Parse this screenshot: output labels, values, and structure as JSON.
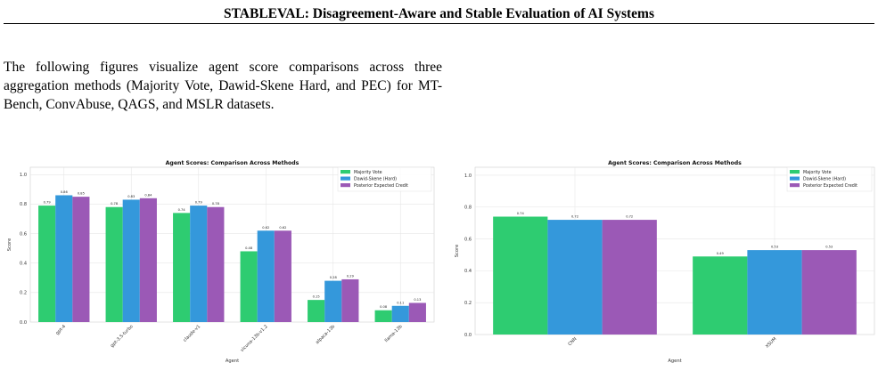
{
  "header": {
    "title": "STABLEVAL: Disagreement-Aware and Stable Evaluation of AI Systems"
  },
  "intro": {
    "text": "The following figures visualize agent score comparisons across three aggregation methods (Majority Vote, Dawid-Skene Hard, and PEC) for MT-Bench, ConvAbuse, QAGS, and MSLR datasets."
  },
  "colors": {
    "majority": "#2ecc71",
    "dawid": "#3498db",
    "pec": "#9b59b6",
    "grid": "#e6e6e6"
  },
  "chart_data": [
    {
      "type": "bar",
      "title": "Agent Scores: Comparison Across Methods",
      "xlabel": "Agent",
      "ylabel": "Score",
      "ylim": [
        0,
        1.05
      ],
      "yticks": [
        "0.0",
        "0.2",
        "0.4",
        "0.6",
        "0.8",
        "1.0"
      ],
      "grid": true,
      "legend_position": "top-right",
      "categories": [
        "gpt-4",
        "gpt-3.5-turbo",
        "claude-v1",
        "vicuna-13b-v1.2",
        "alpaca-13b",
        "llama-13b"
      ],
      "series": [
        {
          "name": "Majority Vote",
          "values": [
            0.79,
            0.78,
            0.74,
            0.48,
            0.15,
            0.08
          ],
          "labels": [
            "0.79",
            "0.78",
            "0.74",
            "0.48",
            "0.15",
            "0.08"
          ]
        },
        {
          "name": "Dawid-Skene (Hard)",
          "values": [
            0.86,
            0.83,
            0.79,
            0.62,
            0.28,
            0.11
          ],
          "labels": [
            "0.86",
            "0.83",
            "0.79",
            "0.62",
            "0.28",
            "0.11"
          ]
        },
        {
          "name": "Posterior Expected Credit",
          "values": [
            0.85,
            0.84,
            0.78,
            0.62,
            0.29,
            0.13
          ],
          "labels": [
            "0.85",
            "0.84",
            "0.78",
            "0.62",
            "0.29",
            "0.13"
          ]
        }
      ]
    },
    {
      "type": "bar",
      "title": "Agent Scores: Comparison Across Methods",
      "xlabel": "Agent",
      "ylabel": "Score",
      "ylim": [
        0,
        1.05
      ],
      "yticks": [
        "0.0",
        "0.2",
        "0.4",
        "0.6",
        "0.8",
        "1.0"
      ],
      "grid": true,
      "legend_position": "top-right",
      "categories": [
        "CNN",
        "XSUM"
      ],
      "series": [
        {
          "name": "Majority Vote",
          "values": [
            0.74,
            0.49
          ],
          "labels": [
            "0.74",
            "0.49"
          ]
        },
        {
          "name": "Dawid-Skene (Hard)",
          "values": [
            0.72,
            0.53
          ],
          "labels": [
            "0.72",
            "0.53"
          ]
        },
        {
          "name": "Posterior Expected Credit",
          "values": [
            0.72,
            0.53
          ],
          "labels": [
            "0.72",
            "0.53"
          ]
        }
      ]
    }
  ]
}
